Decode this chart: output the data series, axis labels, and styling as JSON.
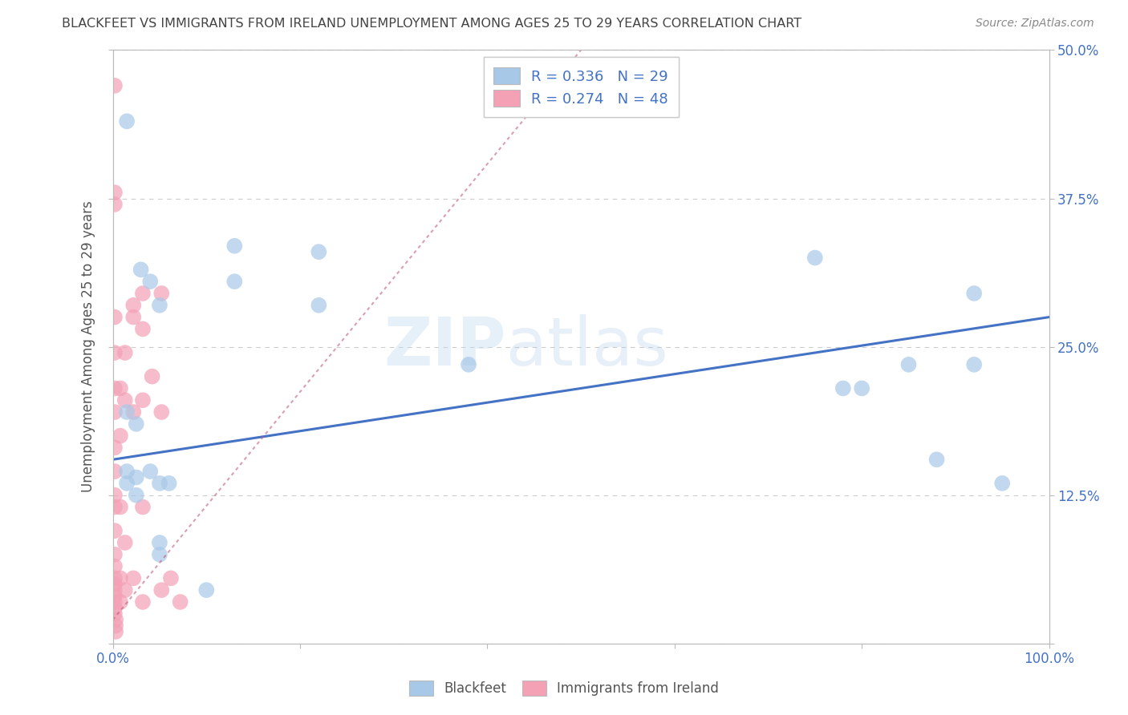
{
  "title": "BLACKFEET VS IMMIGRANTS FROM IRELAND UNEMPLOYMENT AMONG AGES 25 TO 29 YEARS CORRELATION CHART",
  "source": "Source: ZipAtlas.com",
  "ylabel": "Unemployment Among Ages 25 to 29 years",
  "xlim": [
    0,
    1.0
  ],
  "ylim": [
    0,
    0.5
  ],
  "xticks": [
    0.0,
    0.2,
    0.4,
    0.6,
    0.8,
    1.0
  ],
  "xticklabels": [
    "0.0%",
    "",
    "",
    "",
    "",
    "100.0%"
  ],
  "yticks": [
    0.0,
    0.125,
    0.25,
    0.375,
    0.5
  ],
  "right_yticklabels": [
    "",
    "12.5%",
    "25.0%",
    "37.5%",
    "50.0%"
  ],
  "watermark": "ZIPatlas",
  "blue_R": 0.336,
  "blue_N": 29,
  "pink_R": 0.274,
  "pink_N": 48,
  "blue_color": "#a8c8e8",
  "pink_color": "#f4a0b5",
  "blue_line_color": "#4472c4",
  "pink_line_color": "#c0607a",
  "title_color": "#444444",
  "source_color": "#888888",
  "axis_color": "#bbbbbb",
  "grid_color": "#cccccc",
  "blue_scatter_x": [
    0.015,
    0.03,
    0.04,
    0.05,
    0.015,
    0.025,
    0.015,
    0.13,
    0.13,
    0.04,
    0.06,
    0.025,
    0.025,
    0.22,
    0.22,
    0.38,
    0.015,
    0.05,
    0.05,
    0.05,
    0.75,
    0.8,
    0.88,
    0.92,
    0.92,
    0.95,
    0.78,
    0.85,
    0.1
  ],
  "blue_scatter_y": [
    0.44,
    0.315,
    0.305,
    0.285,
    0.195,
    0.185,
    0.145,
    0.335,
    0.305,
    0.145,
    0.135,
    0.14,
    0.125,
    0.33,
    0.285,
    0.235,
    0.135,
    0.135,
    0.085,
    0.075,
    0.325,
    0.215,
    0.155,
    0.295,
    0.235,
    0.135,
    0.215,
    0.235,
    0.045
  ],
  "pink_scatter_x": [
    0.002,
    0.002,
    0.002,
    0.002,
    0.002,
    0.002,
    0.002,
    0.002,
    0.002,
    0.002,
    0.002,
    0.002,
    0.002,
    0.002,
    0.002,
    0.002,
    0.002,
    0.002,
    0.002,
    0.002,
    0.002,
    0.003,
    0.003,
    0.003,
    0.008,
    0.008,
    0.008,
    0.008,
    0.008,
    0.013,
    0.013,
    0.013,
    0.013,
    0.022,
    0.022,
    0.022,
    0.022,
    0.032,
    0.032,
    0.032,
    0.032,
    0.032,
    0.042,
    0.052,
    0.052,
    0.052,
    0.062,
    0.072
  ],
  "pink_scatter_y": [
    0.47,
    0.38,
    0.37,
    0.275,
    0.245,
    0.215,
    0.195,
    0.165,
    0.145,
    0.125,
    0.115,
    0.095,
    0.075,
    0.065,
    0.055,
    0.05,
    0.045,
    0.04,
    0.035,
    0.03,
    0.025,
    0.02,
    0.015,
    0.01,
    0.215,
    0.175,
    0.115,
    0.055,
    0.035,
    0.245,
    0.205,
    0.085,
    0.045,
    0.285,
    0.275,
    0.195,
    0.055,
    0.295,
    0.265,
    0.205,
    0.115,
    0.035,
    0.225,
    0.295,
    0.195,
    0.045,
    0.055,
    0.035
  ],
  "blue_trend_x": [
    0.0,
    1.0
  ],
  "blue_trend_y_start": 0.155,
  "blue_trend_y_end": 0.275,
  "pink_trend_x": [
    0.0,
    0.5
  ],
  "pink_trend_y_start": 0.02,
  "pink_trend_y_end": 0.5
}
